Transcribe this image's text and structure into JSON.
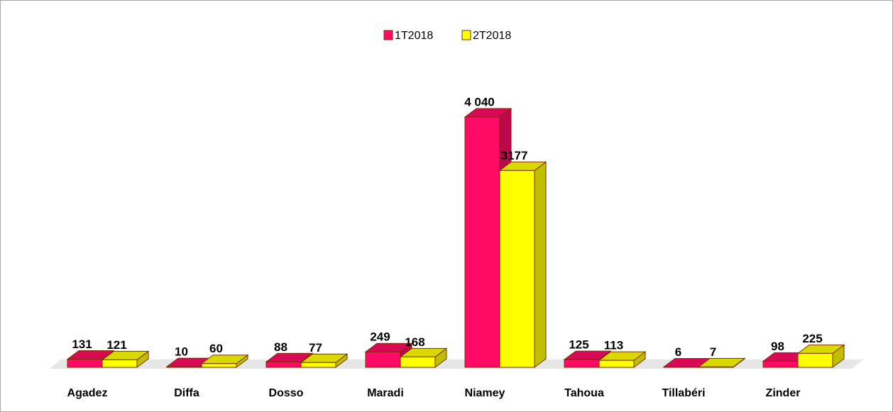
{
  "chart_data": {
    "type": "bar3d",
    "categories": [
      "Agadez",
      "Diffa",
      "Dosso",
      "Maradi",
      "Niamey",
      "Tahoua",
      "Tillabéri",
      "Zinder"
    ],
    "series": [
      {
        "name": "1T2018",
        "color": "#ff0a64",
        "values": [
          131,
          10,
          88,
          249,
          4040,
          125,
          6,
          98
        ],
        "value_labels": [
          "131",
          "10",
          "88",
          "249",
          "4 040",
          "125",
          "6",
          "98"
        ]
      },
      {
        "name": "2T2018",
        "color": "#ffff00",
        "values": [
          121,
          60,
          77,
          168,
          3177,
          113,
          7,
          225
        ]
      }
    ],
    "legend": "top"
  }
}
